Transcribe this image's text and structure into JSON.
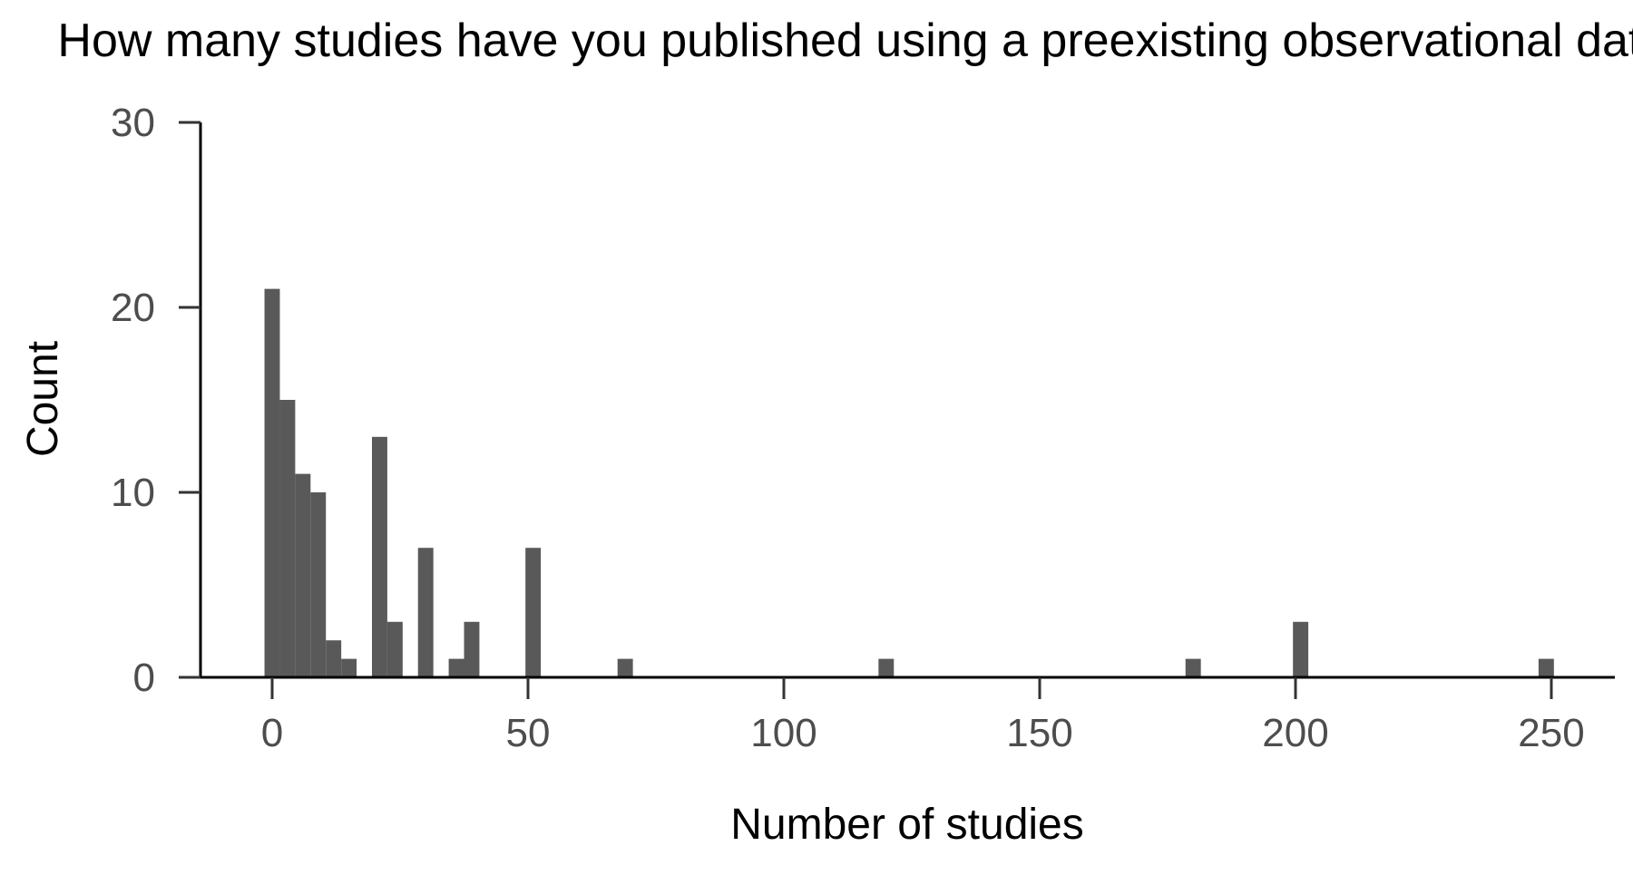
{
  "chart_data": {
    "type": "bar",
    "title": "How many studies have you published using a preexisting observational dataset?",
    "xlabel": "Number of studies",
    "ylabel": "Count",
    "xlim": [
      -18,
      262
    ],
    "ylim": [
      0,
      30
    ],
    "x_ticks": [
      0,
      50,
      100,
      150,
      200,
      250
    ],
    "y_ticks": [
      0,
      10,
      20,
      30
    ],
    "bin_width": 3,
    "bins": [
      {
        "x0": -1.5,
        "x1": 1.5,
        "count": 21
      },
      {
        "x0": 1.5,
        "x1": 4.5,
        "count": 15
      },
      {
        "x0": 4.5,
        "x1": 7.5,
        "count": 11
      },
      {
        "x0": 7.5,
        "x1": 10.5,
        "count": 10
      },
      {
        "x0": 10.5,
        "x1": 13.5,
        "count": 2
      },
      {
        "x0": 13.5,
        "x1": 16.5,
        "count": 1
      },
      {
        "x0": 19.5,
        "x1": 22.5,
        "count": 13
      },
      {
        "x0": 22.5,
        "x1": 25.5,
        "count": 3
      },
      {
        "x0": 28.5,
        "x1": 31.5,
        "count": 7
      },
      {
        "x0": 34.5,
        "x1": 37.5,
        "count": 1
      },
      {
        "x0": 37.5,
        "x1": 40.5,
        "count": 3
      },
      {
        "x0": 49.5,
        "x1": 52.5,
        "count": 7
      },
      {
        "x0": 67.5,
        "x1": 70.5,
        "count": 1
      },
      {
        "x0": 118.5,
        "x1": 121.5,
        "count": 1
      },
      {
        "x0": 178.5,
        "x1": 181.5,
        "count": 1
      },
      {
        "x0": 199.5,
        "x1": 202.5,
        "count": 3
      },
      {
        "x0": 247.5,
        "x1": 250.5,
        "count": 1
      }
    ],
    "bar_color": "#595959",
    "axis_color": "#000000",
    "tick_label_color": "#4d4d4d",
    "grid": false,
    "legend": "none"
  }
}
